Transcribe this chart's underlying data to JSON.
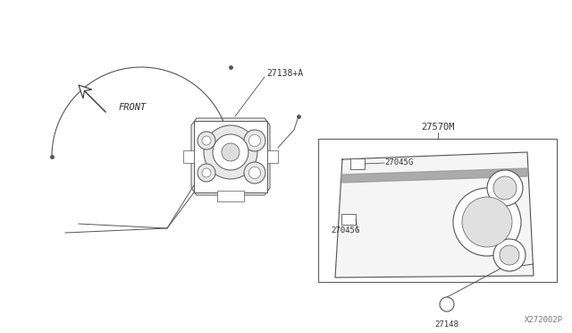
{
  "bg_color": "#ffffff",
  "line_color": "#555555",
  "dark_color": "#333333",
  "part_number": "X272002P",
  "labels": {
    "front": "FRONT",
    "part1": "27138+A",
    "part2": "27570M",
    "part3a": "27045G",
    "part3b": "27045G",
    "part4": "27148"
  },
  "figsize": [
    6.4,
    3.72
  ],
  "dpi": 100,
  "xlim": [
    0,
    640
  ],
  "ylim": [
    0,
    372
  ]
}
